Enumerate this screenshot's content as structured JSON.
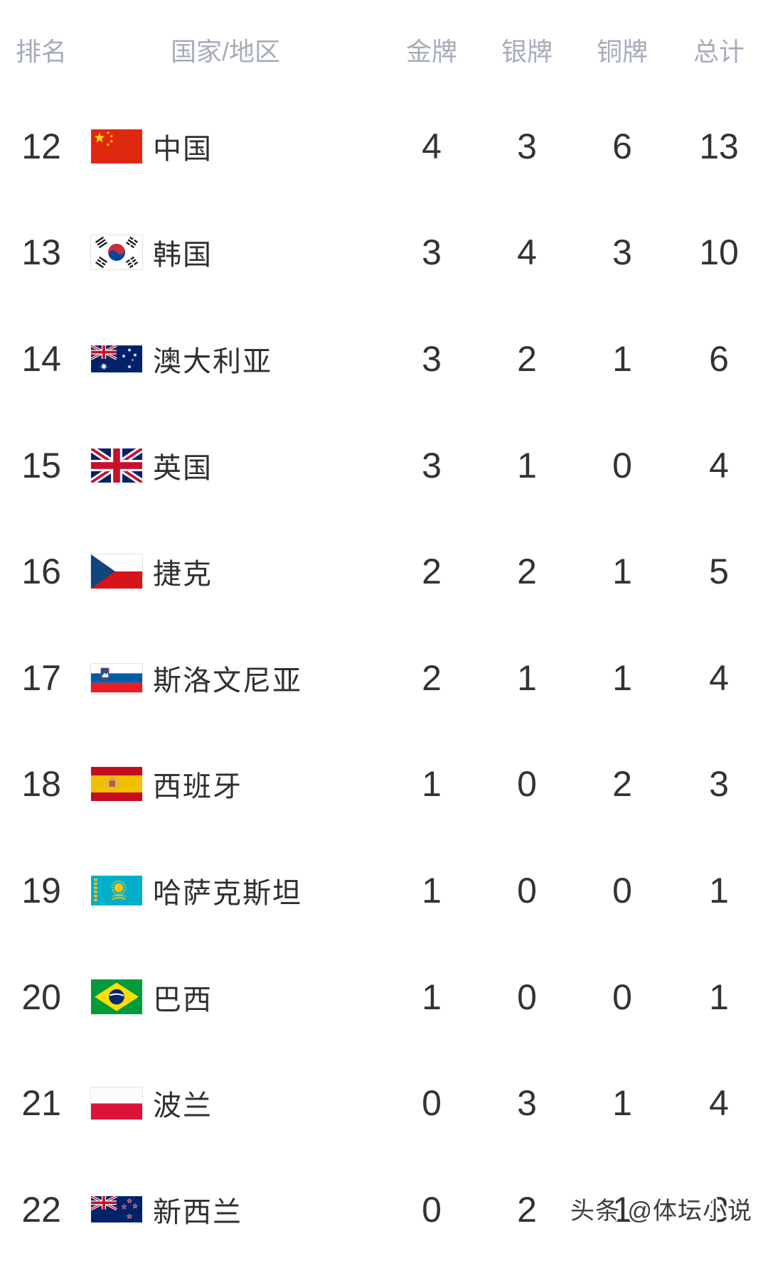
{
  "table": {
    "headers": {
      "rank": "排名",
      "country": "国家/地区",
      "gold": "金牌",
      "silver": "银牌",
      "bronze": "铜牌",
      "total": "总计"
    },
    "rows": [
      {
        "rank": "12",
        "flag": "cn",
        "country": "中国",
        "gold": "4",
        "silver": "3",
        "bronze": "6",
        "total": "13"
      },
      {
        "rank": "13",
        "flag": "kr",
        "country": "韩国",
        "gold": "3",
        "silver": "4",
        "bronze": "3",
        "total": "10"
      },
      {
        "rank": "14",
        "flag": "au",
        "country": "澳大利亚",
        "gold": "3",
        "silver": "2",
        "bronze": "1",
        "total": "6"
      },
      {
        "rank": "15",
        "flag": "gb",
        "country": "英国",
        "gold": "3",
        "silver": "1",
        "bronze": "0",
        "total": "4"
      },
      {
        "rank": "16",
        "flag": "cz",
        "country": "捷克",
        "gold": "2",
        "silver": "2",
        "bronze": "1",
        "total": "5"
      },
      {
        "rank": "17",
        "flag": "si",
        "country": "斯洛文尼亚",
        "gold": "2",
        "silver": "1",
        "bronze": "1",
        "total": "4"
      },
      {
        "rank": "18",
        "flag": "es",
        "country": "西班牙",
        "gold": "1",
        "silver": "0",
        "bronze": "2",
        "total": "3"
      },
      {
        "rank": "19",
        "flag": "kz",
        "country": "哈萨克斯坦",
        "gold": "1",
        "silver": "0",
        "bronze": "0",
        "total": "1"
      },
      {
        "rank": "20",
        "flag": "br",
        "country": "巴西",
        "gold": "1",
        "silver": "0",
        "bronze": "0",
        "total": "1"
      },
      {
        "rank": "21",
        "flag": "pl",
        "country": "波兰",
        "gold": "0",
        "silver": "3",
        "bronze": "1",
        "total": "4"
      },
      {
        "rank": "22",
        "flag": "nz",
        "country": "新西兰",
        "gold": "0",
        "silver": "2",
        "bronze": "1",
        "total": "3"
      }
    ]
  },
  "watermark": "头条 @体坛小说",
  "colors": {
    "header_text": "#a6acb8",
    "body_text": "#333333",
    "background": "#ffffff"
  }
}
